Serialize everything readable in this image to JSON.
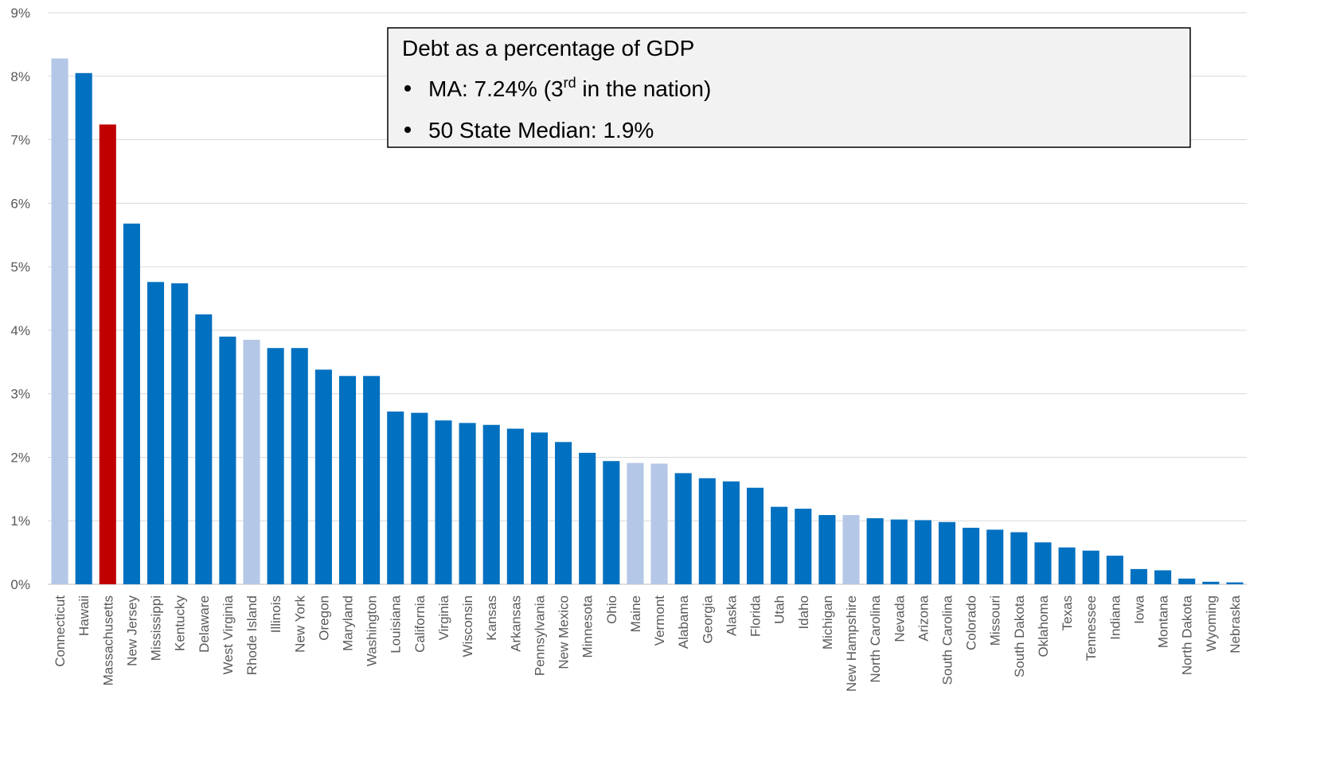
{
  "annotation": {
    "title": "Debt as a percentage of GDP",
    "bullet1_prefix": "MA: 7.24% (3",
    "bullet1_sup": "rd",
    "bullet1_suffix": " in the nation)",
    "bullet2": "50 State Median: 1.9%"
  },
  "chart_data": {
    "type": "bar",
    "title": "",
    "xlabel": "",
    "ylabel": "",
    "ylim": [
      0,
      9
    ],
    "yticks": [
      "0%",
      "1%",
      "2%",
      "3%",
      "4%",
      "5%",
      "6%",
      "7%",
      "8%",
      "9%"
    ],
    "grid": true,
    "legend": "none",
    "colors": {
      "default": "#0070c0",
      "highlight": "#c00000",
      "muted": "#b4c7e7"
    },
    "categories": [
      "Connecticut",
      "Hawaii",
      "Massachusetts",
      "New Jersey",
      "Mississippi",
      "Kentucky",
      "Delaware",
      "West Virginia",
      "Rhode Island",
      "Illinois",
      "New York",
      "Oregon",
      "Maryland",
      "Washington",
      "Louisiana",
      "California",
      "Virginia",
      "Wisconsin",
      "Kansas",
      "Arkansas",
      "Pennsylvania",
      "New Mexico",
      "Minnesota",
      "Ohio",
      "Maine",
      "Vermont",
      "Alabama",
      "Georgia",
      "Alaska",
      "Florida",
      "Utah",
      "Idaho",
      "Michigan",
      "New Hampshire",
      "North Carolina",
      "Nevada",
      "Arizona",
      "South Carolina",
      "Colorado",
      "Missouri",
      "South Dakota",
      "Oklahoma",
      "Texas",
      "Tennessee",
      "Indiana",
      "Iowa",
      "Montana",
      "North Dakota",
      "Wyoming",
      "Nebraska"
    ],
    "values": [
      8.28,
      8.05,
      7.24,
      5.68,
      4.76,
      4.74,
      4.25,
      3.9,
      3.85,
      3.72,
      3.72,
      3.38,
      3.28,
      3.28,
      2.72,
      2.7,
      2.58,
      2.54,
      2.51,
      2.45,
      2.39,
      2.24,
      2.07,
      1.94,
      1.91,
      1.9,
      1.75,
      1.67,
      1.62,
      1.52,
      1.22,
      1.19,
      1.09,
      1.09,
      1.04,
      1.02,
      1.01,
      0.98,
      0.89,
      0.86,
      0.82,
      0.66,
      0.58,
      0.53,
      0.45,
      0.24,
      0.22,
      0.09,
      0.04,
      0.03
    ],
    "bar_color_keys": [
      "muted",
      "default",
      "highlight",
      "default",
      "default",
      "default",
      "default",
      "default",
      "muted",
      "default",
      "default",
      "default",
      "default",
      "default",
      "default",
      "default",
      "default",
      "default",
      "default",
      "default",
      "default",
      "default",
      "default",
      "default",
      "muted",
      "muted",
      "default",
      "default",
      "default",
      "default",
      "default",
      "default",
      "default",
      "muted",
      "default",
      "default",
      "default",
      "default",
      "default",
      "default",
      "default",
      "default",
      "default",
      "default",
      "default",
      "default",
      "default",
      "default",
      "default",
      "default"
    ]
  }
}
